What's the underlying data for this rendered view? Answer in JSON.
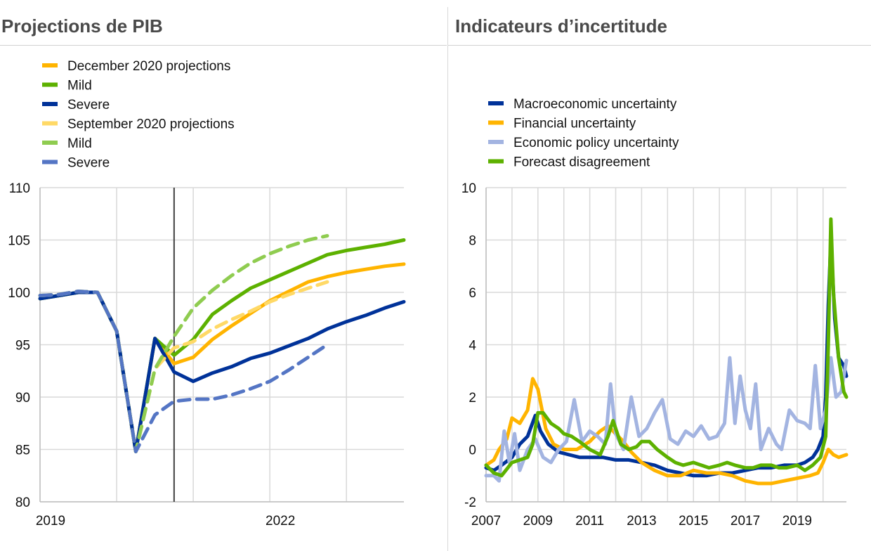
{
  "left_panel": {
    "title": "Projections de PIB",
    "chart_data": {
      "type": "line",
      "ylim": [
        80,
        110
      ],
      "yticks": [
        80,
        85,
        90,
        95,
        100,
        105,
        110
      ],
      "xlim": [
        2019,
        2023.75
      ],
      "xtick_labels": [
        {
          "value": 2019,
          "label": "2019"
        },
        {
          "value": 2022,
          "label": "2022"
        }
      ],
      "grid": true,
      "vertical_marker_x": 2020.75,
      "legend": [
        "December 2020 projections",
        "Mild",
        "Severe",
        "September 2020 projections",
        "Mild",
        "Severe"
      ],
      "series": [
        {
          "name": "December 2020 projections",
          "color": "#FFB400",
          "dashed": false,
          "x": [
            2019,
            2019.25,
            2019.5,
            2019.75,
            2020,
            2020.25,
            2020.5,
            2020.75,
            2021,
            2021.25,
            2021.5,
            2021.75,
            2022,
            2022.25,
            2022.5,
            2022.75,
            2023,
            2023.25,
            2023.5,
            2023.75
          ],
          "values": [
            99.4,
            99.7,
            100.0,
            100.0,
            96.3,
            84.8,
            95.6,
            93.2,
            93.8,
            95.5,
            96.8,
            98.0,
            99.2,
            100.1,
            101.0,
            101.5,
            101.9,
            102.2,
            102.5,
            102.7
          ]
        },
        {
          "name": "Mild",
          "color": "#5DB100",
          "dashed": false,
          "x": [
            2019,
            2019.25,
            2019.5,
            2019.75,
            2020,
            2020.25,
            2020.5,
            2020.75,
            2021,
            2021.25,
            2021.5,
            2021.75,
            2022,
            2022.25,
            2022.5,
            2022.75,
            2023,
            2023.25,
            2023.5,
            2023.75
          ],
          "values": [
            99.4,
            99.7,
            100.0,
            100.0,
            96.3,
            84.8,
            95.6,
            94.0,
            95.5,
            97.9,
            99.2,
            100.4,
            101.2,
            102.0,
            102.8,
            103.6,
            104.0,
            104.3,
            104.6,
            105.0
          ]
        },
        {
          "name": "Severe",
          "color": "#003299",
          "dashed": false,
          "x": [
            2019,
            2019.25,
            2019.5,
            2019.75,
            2020,
            2020.25,
            2020.5,
            2020.75,
            2021,
            2021.25,
            2021.5,
            2021.75,
            2022,
            2022.25,
            2022.5,
            2022.75,
            2023,
            2023.25,
            2023.5,
            2023.75
          ],
          "values": [
            99.4,
            99.7,
            100.0,
            100.0,
            96.3,
            84.8,
            95.6,
            92.4,
            91.5,
            92.3,
            92.9,
            93.7,
            94.2,
            94.9,
            95.6,
            96.5,
            97.2,
            97.8,
            98.5,
            99.1
          ]
        },
        {
          "name": "September 2020 projections",
          "color": "#FFD966",
          "dashed": true,
          "x": [
            2019,
            2019.25,
            2019.5,
            2019.75,
            2020,
            2020.25,
            2020.5,
            2020.75,
            2021,
            2021.25,
            2021.5,
            2021.75,
            2022,
            2022.25,
            2022.5,
            2022.75
          ],
          "values": [
            99.7,
            99.8,
            100.1,
            100.0,
            96.3,
            84.8,
            92.7,
            94.7,
            95.3,
            96.5,
            97.4,
            98.2,
            99.1,
            99.8,
            100.4,
            101.0
          ]
        },
        {
          "name": "Mild",
          "color": "#8FCC50",
          "dashed": true,
          "x": [
            2019,
            2019.25,
            2019.5,
            2019.75,
            2020,
            2020.25,
            2020.5,
            2020.75,
            2021,
            2021.25,
            2021.5,
            2021.75,
            2022,
            2022.25,
            2022.5,
            2022.75
          ],
          "values": [
            99.7,
            99.8,
            100.1,
            100.0,
            96.3,
            84.8,
            92.7,
            95.8,
            98.5,
            100.2,
            101.6,
            102.8,
            103.7,
            104.4,
            105.0,
            105.4
          ]
        },
        {
          "name": "Severe",
          "color": "#5475C4",
          "dashed": true,
          "x": [
            2019,
            2019.25,
            2019.5,
            2019.75,
            2020,
            2020.25,
            2020.5,
            2020.75,
            2021,
            2021.25,
            2021.5,
            2021.75,
            2022,
            2022.25,
            2022.5,
            2022.75
          ],
          "values": [
            99.7,
            99.8,
            100.1,
            100.0,
            96.3,
            84.8,
            88.3,
            89.6,
            89.8,
            89.8,
            90.2,
            90.8,
            91.5,
            92.6,
            93.8,
            95.0
          ]
        }
      ]
    }
  },
  "right_panel": {
    "title": "Indicateurs d’incertitude",
    "chart_data": {
      "type": "line",
      "ylim": [
        -2,
        10
      ],
      "yticks": [
        -2,
        0,
        2,
        4,
        6,
        8,
        10
      ],
      "xlim": [
        2007,
        2020.9
      ],
      "xtick_labels": [
        {
          "value": 2007,
          "label": "2007"
        },
        {
          "value": 2009,
          "label": "2009"
        },
        {
          "value": 2011,
          "label": "2011"
        },
        {
          "value": 2013,
          "label": "2013"
        },
        {
          "value": 2015,
          "label": "2015"
        },
        {
          "value": 2017,
          "label": "2017"
        },
        {
          "value": 2019,
          "label": "2019"
        }
      ],
      "grid": true,
      "legend": [
        "Macroeconomic uncertainty",
        "Financial uncertainty",
        "Economic policy uncertainty",
        "Forecast disagreement"
      ],
      "series": [
        {
          "name": "Macroeconomic uncertainty",
          "color": "#003299",
          "x": [
            2007.0,
            2007.3,
            2007.6,
            2008.0,
            2008.3,
            2008.6,
            2008.9,
            2009.1,
            2009.4,
            2009.8,
            2010.2,
            2010.6,
            2011.0,
            2011.5,
            2012.0,
            2012.5,
            2013.0,
            2013.5,
            2014.0,
            2014.5,
            2015.0,
            2015.5,
            2016.0,
            2016.5,
            2017.0,
            2017.5,
            2018.0,
            2018.5,
            2019.0,
            2019.3,
            2019.6,
            2019.8,
            2020.0,
            2020.1,
            2020.2,
            2020.3,
            2020.45,
            2020.6,
            2020.8,
            2020.9
          ],
          "values": [
            -0.7,
            -0.8,
            -0.6,
            -0.3,
            0.2,
            0.5,
            1.3,
            0.7,
            0.2,
            -0.1,
            -0.2,
            -0.3,
            -0.3,
            -0.3,
            -0.4,
            -0.4,
            -0.5,
            -0.6,
            -0.8,
            -0.9,
            -1.0,
            -1.0,
            -0.9,
            -0.9,
            -0.8,
            -0.7,
            -0.7,
            -0.6,
            -0.6,
            -0.5,
            -0.3,
            0.0,
            0.5,
            2.0,
            5.5,
            8.0,
            5.0,
            3.5,
            3.2,
            2.8
          ]
        },
        {
          "name": "Financial uncertainty",
          "color": "#FFB400",
          "x": [
            2007.0,
            2007.3,
            2007.5,
            2007.8,
            2008.0,
            2008.3,
            2008.6,
            2008.8,
            2009.0,
            2009.3,
            2009.6,
            2010.0,
            2010.5,
            2011.0,
            2011.4,
            2011.7,
            2012.0,
            2012.3,
            2012.6,
            2013.0,
            2013.5,
            2014.0,
            2014.5,
            2015.0,
            2015.5,
            2016.0,
            2016.5,
            2017.0,
            2017.5,
            2018.0,
            2018.5,
            2019.0,
            2019.5,
            2019.8,
            2020.0,
            2020.2,
            2020.4,
            2020.6,
            2020.9
          ],
          "values": [
            -0.6,
            -0.4,
            0.0,
            0.4,
            1.2,
            1.0,
            1.5,
            2.7,
            2.3,
            0.8,
            0.2,
            0.0,
            0.0,
            0.3,
            0.7,
            0.9,
            0.6,
            0.3,
            -0.1,
            -0.5,
            -0.8,
            -1.0,
            -1.0,
            -0.8,
            -0.9,
            -0.9,
            -1.0,
            -1.2,
            -1.3,
            -1.3,
            -1.2,
            -1.1,
            -1.0,
            -0.9,
            -0.5,
            0.0,
            -0.2,
            -0.3,
            -0.2
          ]
        },
        {
          "name": "Economic policy uncertainty",
          "color": "#A3B4E1",
          "x": [
            2007.0,
            2007.3,
            2007.5,
            2007.7,
            2007.9,
            2008.1,
            2008.3,
            2008.6,
            2008.9,
            2009.2,
            2009.5,
            2009.8,
            2010.1,
            2010.4,
            2010.7,
            2011.0,
            2011.3,
            2011.6,
            2011.8,
            2012.0,
            2012.3,
            2012.6,
            2012.9,
            2013.2,
            2013.5,
            2013.8,
            2014.1,
            2014.4,
            2014.7,
            2015.0,
            2015.3,
            2015.6,
            2015.9,
            2016.2,
            2016.4,
            2016.6,
            2016.8,
            2017.0,
            2017.2,
            2017.4,
            2017.6,
            2017.9,
            2018.2,
            2018.4,
            2018.7,
            2019.0,
            2019.3,
            2019.5,
            2019.7,
            2019.9,
            2020.1,
            2020.3,
            2020.5,
            2020.7,
            2020.9
          ],
          "values": [
            -1.0,
            -1.0,
            -1.2,
            0.7,
            -0.5,
            0.6,
            -0.8,
            0.0,
            0.4,
            -0.3,
            -0.5,
            0.0,
            0.3,
            1.9,
            0.3,
            0.7,
            0.5,
            0.2,
            2.5,
            0.6,
            0.0,
            2.0,
            0.5,
            0.8,
            1.4,
            1.9,
            0.4,
            0.2,
            0.7,
            0.5,
            0.9,
            0.4,
            0.5,
            1.0,
            3.5,
            1.0,
            2.8,
            1.5,
            0.8,
            2.5,
            0.0,
            0.8,
            0.2,
            0.0,
            1.5,
            1.1,
            1.0,
            0.8,
            3.2,
            0.8,
            1.5,
            3.5,
            2.0,
            2.2,
            3.4
          ]
        },
        {
          "name": "Forecast disagreement",
          "color": "#5DB100",
          "x": [
            2007.0,
            2007.3,
            2007.6,
            2008.0,
            2008.3,
            2008.6,
            2008.8,
            2009.0,
            2009.2,
            2009.5,
            2009.8,
            2010.0,
            2010.3,
            2010.6,
            2011.0,
            2011.4,
            2011.7,
            2011.9,
            2012.2,
            2012.5,
            2012.8,
            2013.0,
            2013.3,
            2013.6,
            2014.0,
            2014.3,
            2014.6,
            2015.0,
            2015.3,
            2015.6,
            2016.0,
            2016.3,
            2016.6,
            2017.0,
            2017.3,
            2017.6,
            2018.0,
            2018.3,
            2018.6,
            2019.0,
            2019.3,
            2019.6,
            2019.9,
            2020.1,
            2020.2,
            2020.3,
            2020.4,
            2020.6,
            2020.8,
            2020.9
          ],
          "values": [
            -0.6,
            -0.9,
            -1.0,
            -0.5,
            -0.4,
            -0.3,
            0.2,
            1.4,
            1.4,
            1.0,
            0.8,
            0.6,
            0.5,
            0.3,
            0.0,
            -0.2,
            0.5,
            1.1,
            0.2,
            0.0,
            0.1,
            0.3,
            0.3,
            0.0,
            -0.3,
            -0.5,
            -0.6,
            -0.5,
            -0.6,
            -0.7,
            -0.6,
            -0.5,
            -0.6,
            -0.7,
            -0.7,
            -0.6,
            -0.6,
            -0.7,
            -0.7,
            -0.6,
            -0.8,
            -0.6,
            -0.3,
            0.5,
            4.0,
            8.8,
            6.0,
            3.5,
            2.2,
            2.0
          ]
        }
      ]
    }
  }
}
